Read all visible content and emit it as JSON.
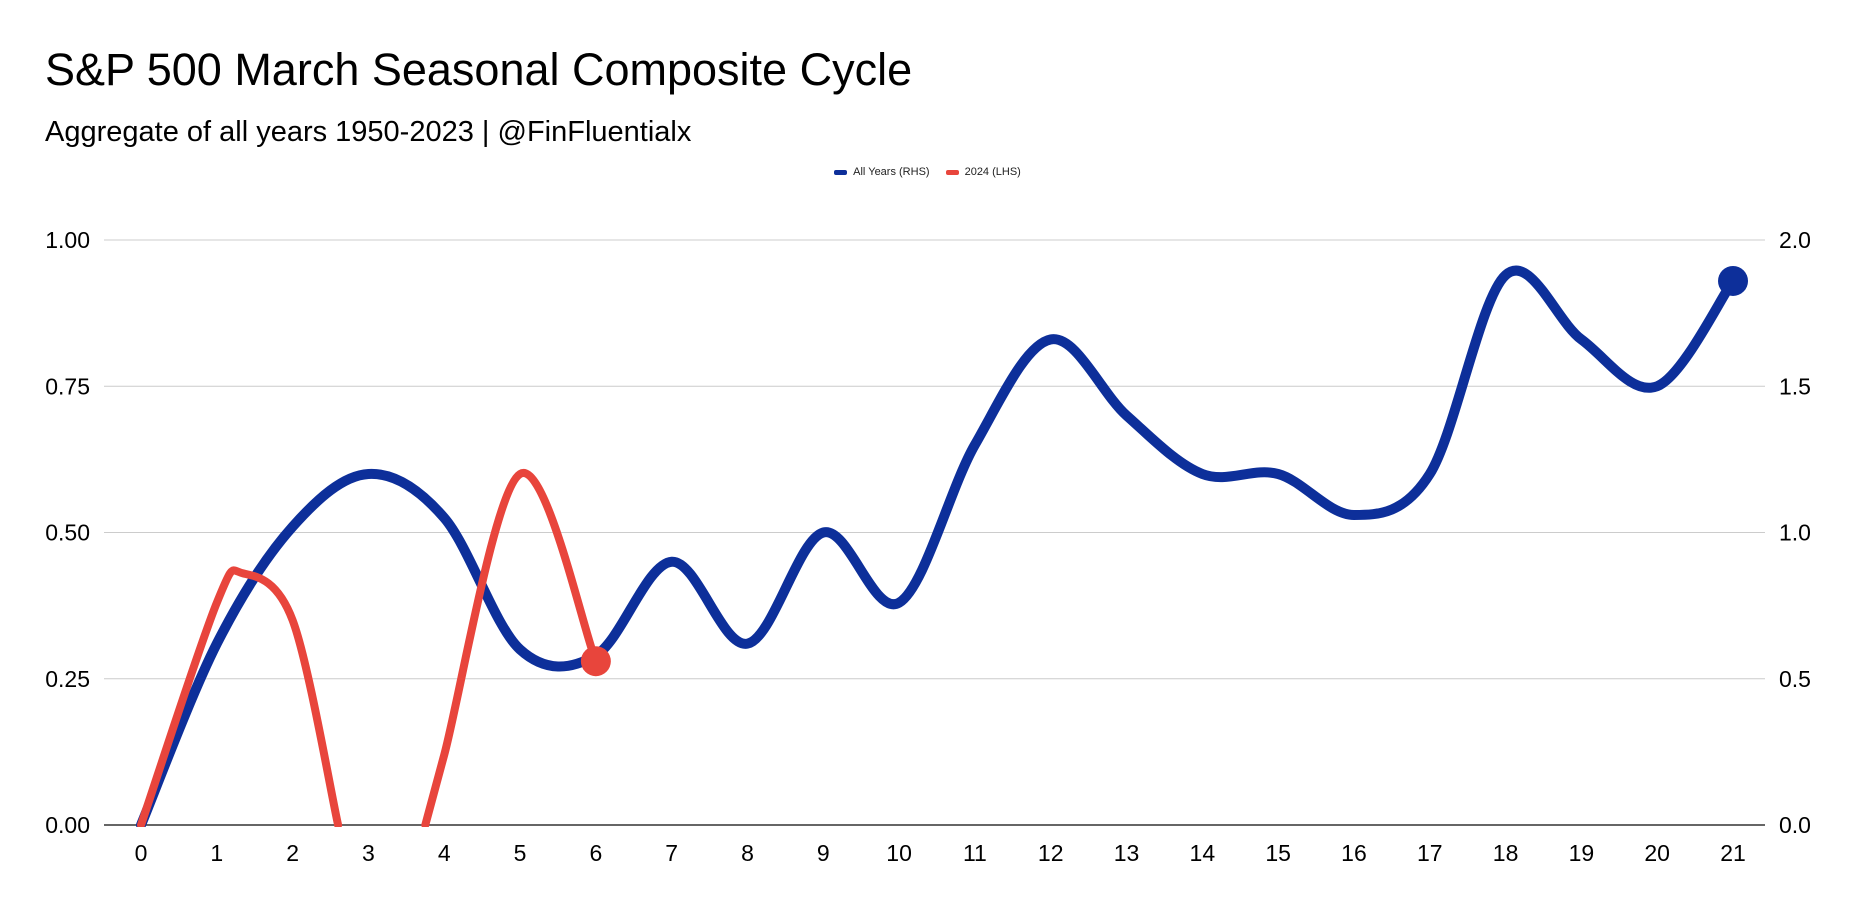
{
  "chart_data": {
    "type": "line",
    "title": "S&P 500 March Seasonal Composite Cycle",
    "subtitle": "Aggregate of all years 1950-2023 | @FinFluentialx",
    "legend_position": "top-center",
    "grid": true,
    "x": [
      0,
      1,
      2,
      3,
      4,
      5,
      6,
      7,
      8,
      9,
      10,
      11,
      12,
      13,
      14,
      15,
      16,
      17,
      18,
      19,
      20,
      21
    ],
    "x_ticks": [
      "0",
      "1",
      "2",
      "3",
      "4",
      "5",
      "6",
      "7",
      "8",
      "9",
      "10",
      "11",
      "12",
      "13",
      "14",
      "15",
      "16",
      "17",
      "18",
      "19",
      "20",
      "21"
    ],
    "y_left_ticks": [
      "0.00",
      "0.25",
      "0.50",
      "0.75",
      "1.00"
    ],
    "y_right_ticks": [
      "0.0",
      "0.5",
      "1.0",
      "1.5",
      "2.0"
    ],
    "ylim_left": [
      0,
      1
    ],
    "ylim_right": [
      0,
      2
    ],
    "series": [
      {
        "name": "All Years (RHS)",
        "axis": "right",
        "color": "#0d2f9a",
        "x": [
          0,
          1,
          2,
          3,
          4,
          5,
          6,
          7,
          8,
          9,
          10,
          11,
          12,
          13,
          14,
          15,
          16,
          17,
          18,
          19,
          20,
          21
        ],
        "values": [
          0.0,
          0.62,
          1.02,
          1.2,
          1.05,
          0.6,
          0.58,
          0.9,
          0.62,
          1.0,
          0.76,
          1.3,
          1.66,
          1.4,
          1.2,
          1.2,
          1.06,
          1.2,
          1.88,
          1.66,
          1.5,
          1.86
        ]
      },
      {
        "name": "2024 (LHS)",
        "axis": "left",
        "color": "#e8453c",
        "segments": [
          {
            "x": [
              0,
              1,
              1.35,
              2,
              2.6
            ],
            "values": [
              0.0,
              0.38,
              0.43,
              0.35,
              0.0
            ]
          },
          {
            "x": [
              3.75,
              4,
              5,
              6
            ],
            "values": [
              0.0,
              0.12,
              0.6,
              0.28
            ]
          }
        ]
      }
    ]
  }
}
